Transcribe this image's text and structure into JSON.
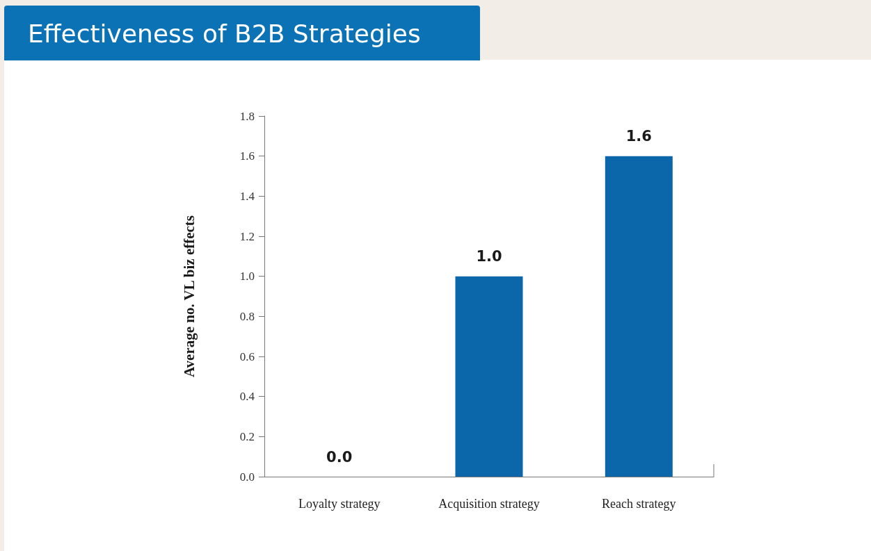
{
  "chart_data": {
    "type": "bar",
    "title": "Effectiveness of B2B Strategies",
    "ylabel": "Average no. VL biz effects",
    "categories": [
      "Loyalty strategy",
      "Acquisition strategy",
      "Reach strategy"
    ],
    "values": [
      0,
      1.0,
      1.6
    ],
    "value_labels": [
      "0.0",
      "1.0",
      "1.6"
    ],
    "color": "#0b67a9",
    "ylim": [
      0,
      1.8
    ],
    "yticks": [
      {
        "value": 0,
        "label": "0.0"
      },
      {
        "value": 0.2,
        "label": "0.2"
      },
      {
        "value": 0.4,
        "label": "0.4"
      },
      {
        "value": 0.6,
        "label": "0.6"
      },
      {
        "value": 0.8,
        "label": "0.8"
      },
      {
        "value": 1.0,
        "label": "1.0"
      },
      {
        "value": 1.2,
        "label": "1.2"
      },
      {
        "value": 1.4,
        "label": "1.4"
      },
      {
        "value": 1.6,
        "label": "1.6"
      },
      {
        "value": 1.8,
        "label": "1.8"
      }
    ],
    "grid": false
  }
}
